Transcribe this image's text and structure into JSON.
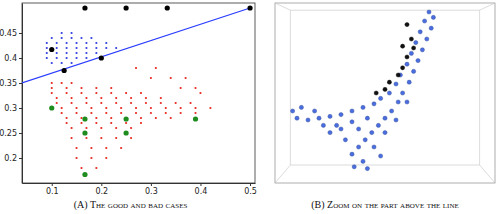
{
  "chart_data": [
    {
      "type": "scatter",
      "title": "(A) The good and bad cases",
      "xlim": [
        0.04,
        0.51
      ],
      "ylim": [
        0.15,
        0.51
      ],
      "xticks": [
        0.1,
        0.2,
        0.3,
        0.4,
        0.5
      ],
      "yticks": [
        0.2,
        0.25,
        0.3,
        0.35,
        0.4,
        0.45
      ],
      "series": [
        {
          "type": "scatter",
          "color": "#e8261c",
          "marker": "dot",
          "x": [
            0.1,
            0.12,
            0.14,
            0.1,
            0.13,
            0.16,
            0.19,
            0.22,
            0.36,
            0.39,
            0.1,
            0.13,
            0.16,
            0.19,
            0.22,
            0.25,
            0.28,
            0.4,
            0.11,
            0.14,
            0.17,
            0.2,
            0.23,
            0.26,
            0.29,
            0.32,
            0.11,
            0.14,
            0.17,
            0.2,
            0.23,
            0.26,
            0.29,
            0.32,
            0.35,
            0.38,
            0.12,
            0.15,
            0.18,
            0.21,
            0.24,
            0.27,
            0.3,
            0.33,
            0.36,
            0.39,
            0.42,
            0.12,
            0.15,
            0.18,
            0.21,
            0.24,
            0.27,
            0.3,
            0.33,
            0.36,
            0.39,
            0.13,
            0.16,
            0.19,
            0.22,
            0.25,
            0.28,
            0.31,
            0.34,
            0.13,
            0.16,
            0.19,
            0.22,
            0.25,
            0.28,
            0.14,
            0.17,
            0.2,
            0.23,
            0.26,
            0.14,
            0.17,
            0.2,
            0.23,
            0.26,
            0.15,
            0.18,
            0.21,
            0.24,
            0.15,
            0.18,
            0.21,
            0.16,
            0.19,
            0.3,
            0.34,
            0.37,
            0.27,
            0.31
          ],
          "values": [
            0.35,
            0.35,
            0.35,
            0.34,
            0.34,
            0.34,
            0.34,
            0.34,
            0.34,
            0.34,
            0.33,
            0.33,
            0.33,
            0.33,
            0.33,
            0.33,
            0.33,
            0.33,
            0.32,
            0.32,
            0.32,
            0.32,
            0.32,
            0.32,
            0.32,
            0.32,
            0.31,
            0.31,
            0.31,
            0.31,
            0.31,
            0.31,
            0.31,
            0.31,
            0.31,
            0.31,
            0.3,
            0.3,
            0.3,
            0.3,
            0.3,
            0.3,
            0.3,
            0.3,
            0.3,
            0.3,
            0.3,
            0.29,
            0.29,
            0.29,
            0.29,
            0.29,
            0.29,
            0.29,
            0.29,
            0.29,
            0.29,
            0.28,
            0.28,
            0.28,
            0.28,
            0.28,
            0.28,
            0.28,
            0.28,
            0.27,
            0.27,
            0.27,
            0.27,
            0.27,
            0.27,
            0.26,
            0.26,
            0.26,
            0.26,
            0.26,
            0.24,
            0.24,
            0.24,
            0.24,
            0.24,
            0.22,
            0.22,
            0.22,
            0.22,
            0.2,
            0.2,
            0.2,
            0.18,
            0.18,
            0.36,
            0.36,
            0.36,
            0.38,
            0.38
          ]
        },
        {
          "type": "scatter",
          "color": "#2f3fe0",
          "marker": "dot",
          "x": [
            0.12,
            0.14,
            0.1,
            0.12,
            0.14,
            0.16,
            0.18,
            0.09,
            0.11,
            0.13,
            0.15,
            0.17,
            0.19,
            0.21,
            0.09,
            0.11,
            0.13,
            0.15,
            0.17,
            0.19,
            0.21,
            0.23,
            0.09,
            0.11,
            0.13,
            0.15,
            0.17,
            0.19,
            0.09,
            0.11,
            0.13,
            0.15,
            0.17,
            0.1,
            0.12,
            0.14
          ],
          "values": [
            0.45,
            0.45,
            0.44,
            0.44,
            0.44,
            0.44,
            0.44,
            0.43,
            0.43,
            0.43,
            0.43,
            0.43,
            0.43,
            0.43,
            0.42,
            0.42,
            0.42,
            0.42,
            0.42,
            0.42,
            0.42,
            0.42,
            0.41,
            0.41,
            0.41,
            0.41,
            0.41,
            0.41,
            0.4,
            0.4,
            0.4,
            0.4,
            0.4,
            0.39,
            0.39,
            0.39
          ]
        },
        {
          "type": "line",
          "color": "#2a3cff",
          "line_style": "solid",
          "x": [
            0.04,
            0.5
          ],
          "values": [
            0.35,
            0.5
          ]
        },
        {
          "type": "scatter",
          "color": "#000000",
          "marker": "circle",
          "x": [
            0.167,
            0.25,
            0.333,
            0.5,
            0.1,
            0.125,
            0.2
          ],
          "values": [
            0.5,
            0.5,
            0.5,
            0.5,
            0.417,
            0.375,
            0.4
          ]
        },
        {
          "type": "scatter",
          "color": "#1e8c1e",
          "marker": "circle",
          "x": [
            0.1,
            0.167,
            0.25,
            0.39,
            0.167,
            0.25,
            0.167
          ],
          "values": [
            0.3,
            0.278,
            0.278,
            0.278,
            0.25,
            0.25,
            0.167
          ]
        }
      ]
    },
    {
      "type": "scatter",
      "title": "(B) Zoom on the part above the line",
      "xlim": [
        0,
        1
      ],
      "ylim": [
        0,
        1
      ],
      "tick_labels": false,
      "series": [
        {
          "type": "scatter",
          "color": "#4a6ee0",
          "marker": "sphere",
          "x": [
            0.7,
            0.72,
            0.68,
            0.71,
            0.66,
            0.69,
            0.64,
            0.67,
            0.62,
            0.65,
            0.6,
            0.63,
            0.57,
            0.61,
            0.55,
            0.58,
            0.52,
            0.56,
            0.48,
            0.53,
            0.45,
            0.5,
            0.4,
            0.47,
            0.35,
            0.44,
            0.3,
            0.41,
            0.25,
            0.38,
            0.2,
            0.35,
            0.15,
            0.4,
            0.1,
            0.3,
            0.25,
            0.35,
            0.42,
            0.38,
            0.32,
            0.28,
            0.45,
            0.5,
            0.42,
            0.22,
            0.18,
            0.08,
            0.12,
            0.55,
            0.6,
            0.48,
            0.36
          ],
          "values": [
            0.95,
            0.92,
            0.9,
            0.86,
            0.84,
            0.8,
            0.78,
            0.74,
            0.72,
            0.68,
            0.66,
            0.62,
            0.6,
            0.56,
            0.55,
            0.5,
            0.5,
            0.45,
            0.47,
            0.4,
            0.44,
            0.36,
            0.42,
            0.32,
            0.4,
            0.28,
            0.38,
            0.24,
            0.37,
            0.2,
            0.36,
            0.16,
            0.35,
            0.12,
            0.36,
            0.3,
            0.28,
            0.34,
            0.36,
            0.3,
            0.24,
            0.32,
            0.2,
            0.28,
            0.08,
            0.32,
            0.4,
            0.4,
            0.42,
            0.35,
            0.45,
            0.15,
            0.09
          ]
        },
        {
          "type": "scatter",
          "color": "#111111",
          "marker": "sphere",
          "x": [
            0.62,
            0.63,
            0.6,
            0.58,
            0.56,
            0.52,
            0.5,
            0.46,
            0.6,
            0.58
          ],
          "values": [
            0.8,
            0.75,
            0.7,
            0.64,
            0.6,
            0.56,
            0.52,
            0.5,
            0.88,
            0.76
          ]
        }
      ]
    }
  ]
}
